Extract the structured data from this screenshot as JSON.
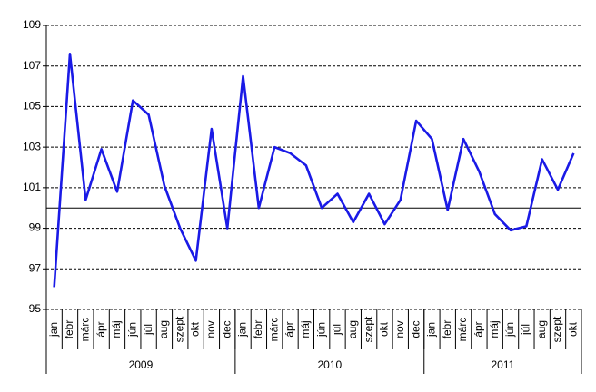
{
  "chart_data": {
    "type": "line",
    "groups": [
      {
        "name": "2009",
        "categories": [
          "jan",
          "febr",
          "márc",
          "ápr",
          "máj",
          "jún",
          "júl",
          "aug",
          "szept",
          "okt",
          "nov",
          "dec"
        ]
      },
      {
        "name": "2010",
        "categories": [
          "jan",
          "febr",
          "márc",
          "ápr",
          "máj",
          "jún",
          "júl",
          "aug",
          "szept",
          "okt",
          "nov",
          "dec"
        ]
      },
      {
        "name": "2011",
        "categories": [
          "jan",
          "febr",
          "márc",
          "ápr",
          "máj",
          "jún",
          "júl",
          "aug",
          "szept",
          "okt"
        ]
      }
    ],
    "series": [
      {
        "color": "#1a1ae6",
        "values": [
          96.1,
          107.6,
          100.4,
          102.9,
          100.8,
          105.3,
          104.6,
          101.1,
          99.0,
          97.4,
          103.9,
          99.0,
          106.5,
          100.0,
          103.0,
          102.7,
          102.1,
          100.0,
          100.7,
          99.3,
          100.7,
          99.2,
          100.4,
          104.3,
          103.4,
          99.9,
          103.4,
          101.8,
          99.7,
          98.9,
          99.1,
          102.4,
          100.9,
          102.7
        ]
      }
    ],
    "ylim": [
      95,
      109
    ],
    "yticks": [
      95,
      97,
      99,
      101,
      103,
      105,
      107,
      109
    ],
    "xaxis_crossing": 100,
    "grid": true
  }
}
